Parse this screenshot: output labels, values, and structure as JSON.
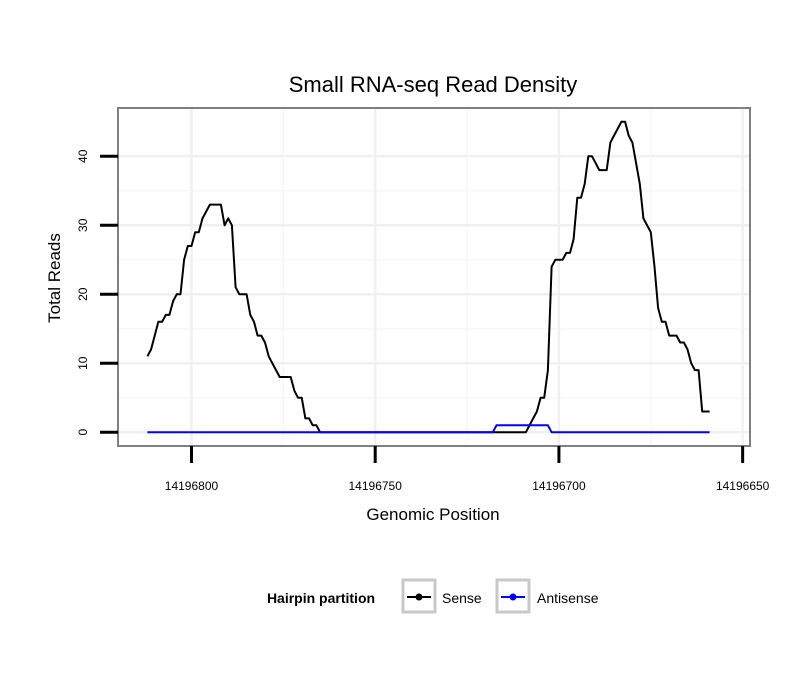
{
  "chart_data": {
    "type": "line",
    "title": "Small RNA-seq Read Density",
    "xlabel": "Genomic Position",
    "ylabel": "Total Reads",
    "x_reversed": true,
    "xlim": [
      14196820,
      14196648
    ],
    "ylim": [
      -2,
      47
    ],
    "x_ticks": [
      14196800,
      14196750,
      14196700,
      14196650
    ],
    "x_tick_labels": [
      "14196800",
      "14196750",
      "14196700",
      "14196650"
    ],
    "y_ticks": [
      0,
      10,
      20,
      30,
      40
    ],
    "y_tick_labels": [
      "0",
      "10",
      "20",
      "30",
      "40"
    ],
    "grid": true,
    "legend": {
      "title": "Hairpin partition",
      "placement": "bottom",
      "entries": [
        "Sense",
        "Antisense"
      ]
    },
    "series": [
      {
        "name": "Sense",
        "color": "#000000",
        "points": [
          [
            14196812,
            11
          ],
          [
            14196811,
            12
          ],
          [
            14196810,
            14
          ],
          [
            14196809,
            16
          ],
          [
            14196808,
            16
          ],
          [
            14196807,
            17
          ],
          [
            14196806,
            17
          ],
          [
            14196805,
            19
          ],
          [
            14196804,
            20
          ],
          [
            14196803,
            20
          ],
          [
            14196802,
            25
          ],
          [
            14196801,
            27
          ],
          [
            14196800,
            27
          ],
          [
            14196799,
            29
          ],
          [
            14196798,
            29
          ],
          [
            14196797,
            31
          ],
          [
            14196796,
            32
          ],
          [
            14196795,
            33
          ],
          [
            14196794,
            33
          ],
          [
            14196793,
            33
          ],
          [
            14196792,
            33
          ],
          [
            14196791,
            30
          ],
          [
            14196790,
            31
          ],
          [
            14196789,
            30
          ],
          [
            14196788,
            21
          ],
          [
            14196787,
            20
          ],
          [
            14196786,
            20
          ],
          [
            14196785,
            20
          ],
          [
            14196784,
            17
          ],
          [
            14196783,
            16
          ],
          [
            14196782,
            14
          ],
          [
            14196781,
            14
          ],
          [
            14196780,
            13
          ],
          [
            14196779,
            11
          ],
          [
            14196778,
            10
          ],
          [
            14196777,
            9
          ],
          [
            14196776,
            8
          ],
          [
            14196775,
            8
          ],
          [
            14196774,
            8
          ],
          [
            14196773,
            8
          ],
          [
            14196772,
            6
          ],
          [
            14196771,
            5
          ],
          [
            14196770,
            5
          ],
          [
            14196769,
            2
          ],
          [
            14196768,
            2
          ],
          [
            14196767,
            1
          ],
          [
            14196766,
            1
          ],
          [
            14196765,
            0
          ],
          [
            14196710,
            0
          ],
          [
            14196709,
            0
          ],
          [
            14196708,
            1
          ],
          [
            14196707,
            2
          ],
          [
            14196706,
            3
          ],
          [
            14196705,
            5
          ],
          [
            14196704,
            5
          ],
          [
            14196703,
            9
          ],
          [
            14196702,
            24
          ],
          [
            14196701,
            25
          ],
          [
            14196700,
            25
          ],
          [
            14196699,
            25
          ],
          [
            14196698,
            26
          ],
          [
            14196697,
            26
          ],
          [
            14196696,
            28
          ],
          [
            14196695,
            34
          ],
          [
            14196694,
            34
          ],
          [
            14196693,
            36
          ],
          [
            14196692,
            40
          ],
          [
            14196691,
            40
          ],
          [
            14196690,
            39
          ],
          [
            14196689,
            38
          ],
          [
            14196688,
            38
          ],
          [
            14196687,
            38
          ],
          [
            14196686,
            42
          ],
          [
            14196685,
            43
          ],
          [
            14196684,
            44
          ],
          [
            14196683,
            45
          ],
          [
            14196682,
            45
          ],
          [
            14196681,
            43
          ],
          [
            14196680,
            42
          ],
          [
            14196679,
            39
          ],
          [
            14196678,
            36
          ],
          [
            14196677,
            31
          ],
          [
            14196676,
            30
          ],
          [
            14196675,
            29
          ],
          [
            14196674,
            24
          ],
          [
            14196673,
            18
          ],
          [
            14196672,
            16
          ],
          [
            14196671,
            16
          ],
          [
            14196670,
            14
          ],
          [
            14196669,
            14
          ],
          [
            14196668,
            14
          ],
          [
            14196667,
            13
          ],
          [
            14196666,
            13
          ],
          [
            14196665,
            12
          ],
          [
            14196664,
            10
          ],
          [
            14196663,
            9
          ],
          [
            14196662,
            9
          ],
          [
            14196661,
            3
          ],
          [
            14196659,
            3
          ]
        ]
      },
      {
        "name": "Antisense",
        "color": "#0000ff",
        "points": [
          [
            14196812,
            0
          ],
          [
            14196718,
            0
          ],
          [
            14196717,
            1
          ],
          [
            14196703,
            1
          ],
          [
            14196702,
            0
          ],
          [
            14196659,
            0
          ]
        ]
      }
    ]
  }
}
